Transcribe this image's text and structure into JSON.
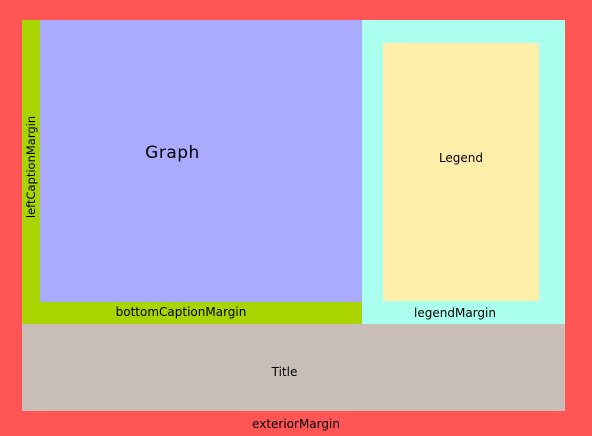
{
  "colors": {
    "exterior": "#ff5555",
    "left_caption": "#aad400",
    "bottom_caption": "#aad400",
    "graph": "#aaaaff",
    "legend_margin": "#aaffee",
    "legend": "#ffeeaa",
    "title": "#c8beb7"
  },
  "labels": {
    "graph": "Graph",
    "legend": "Legend",
    "left_caption_margin": "leftCaptionMargin",
    "bottom_caption_margin": "bottomCaptionMargin",
    "legend_margin": "legendMargin",
    "title": "Title",
    "exterior_margin": "exteriorMargin"
  }
}
